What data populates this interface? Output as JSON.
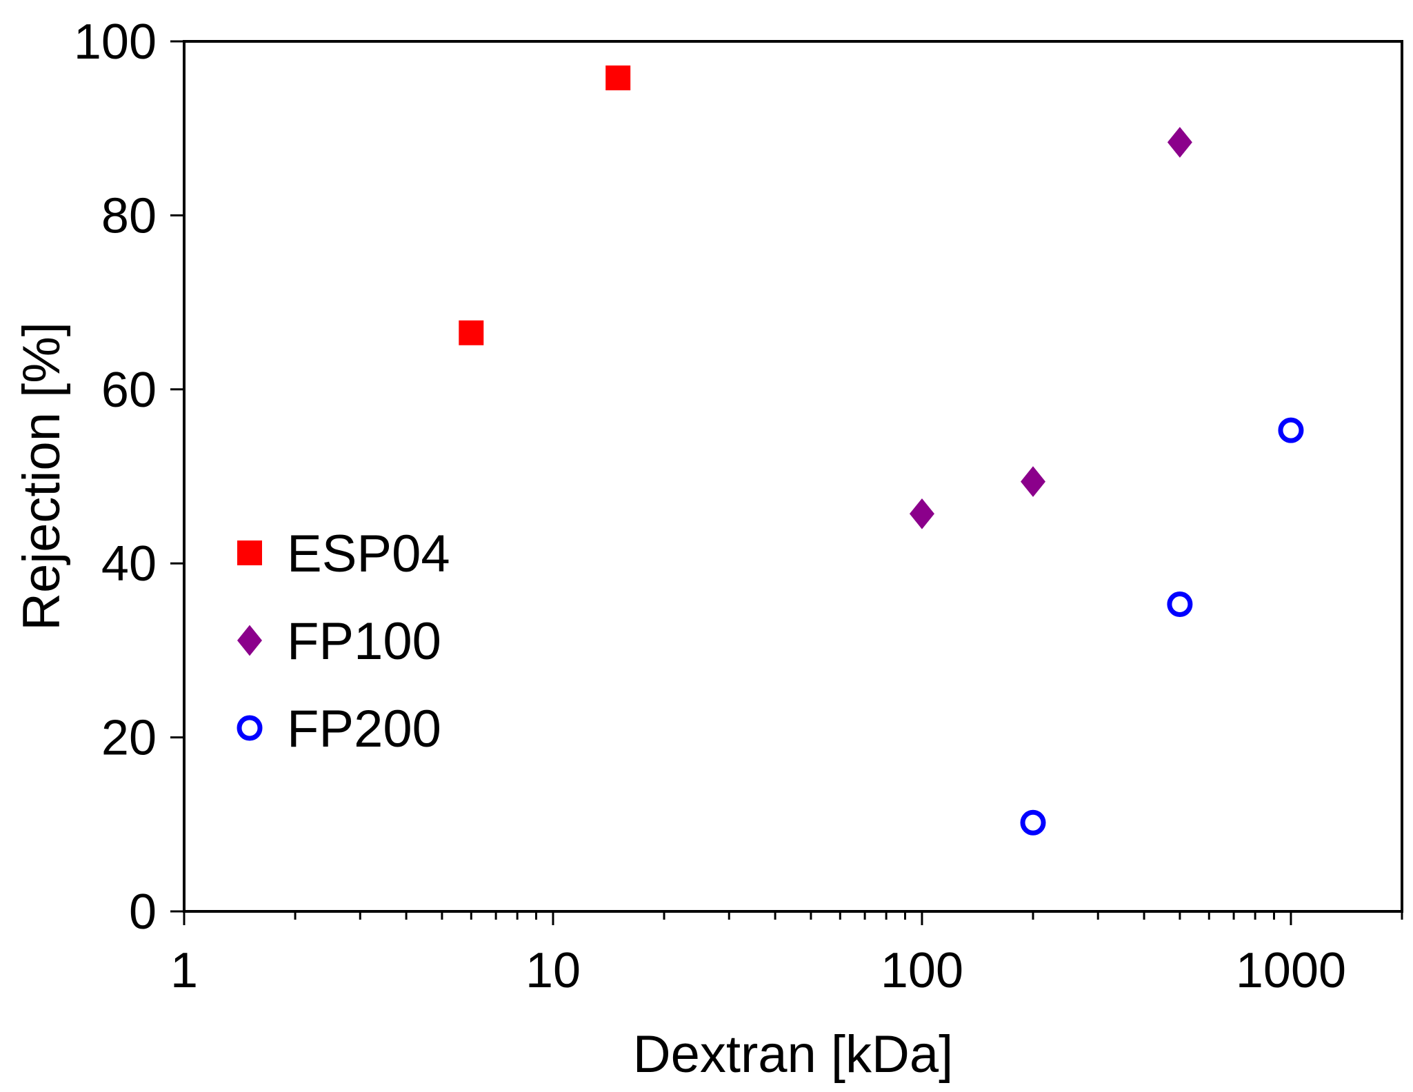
{
  "chart_data": {
    "type": "scatter",
    "title": "",
    "xlabel": "Dextran [kDa]",
    "ylabel": "Rejection [%]",
    "xscale": "log",
    "xlim": [
      1,
      2000
    ],
    "ylim": [
      0,
      100
    ],
    "x_ticks": [
      1,
      10,
      100,
      1000
    ],
    "x_tick_labels": [
      "1",
      "10",
      "100",
      "1000"
    ],
    "y_ticks": [
      0,
      20,
      40,
      60,
      80,
      100
    ],
    "y_tick_labels": [
      "0",
      "20",
      "40",
      "60",
      "80",
      "100"
    ],
    "grid": false,
    "legend_position": "left-center",
    "series": [
      {
        "name": "ESP04",
        "marker": "square",
        "color": "#ff0000",
        "points": [
          {
            "x": 6,
            "y": 66.5
          },
          {
            "x": 15,
            "y": 95.8
          }
        ]
      },
      {
        "name": "FP100",
        "marker": "diamond",
        "color": "#8b008b",
        "points": [
          {
            "x": 100,
            "y": 45.7
          },
          {
            "x": 200,
            "y": 49.4
          },
          {
            "x": 500,
            "y": 88.4
          }
        ]
      },
      {
        "name": "FP200",
        "marker": "circle-open",
        "color": "#0000ff",
        "points": [
          {
            "x": 200,
            "y": 10.2
          },
          {
            "x": 500,
            "y": 35.3
          },
          {
            "x": 1000,
            "y": 55.3
          }
        ]
      }
    ]
  }
}
